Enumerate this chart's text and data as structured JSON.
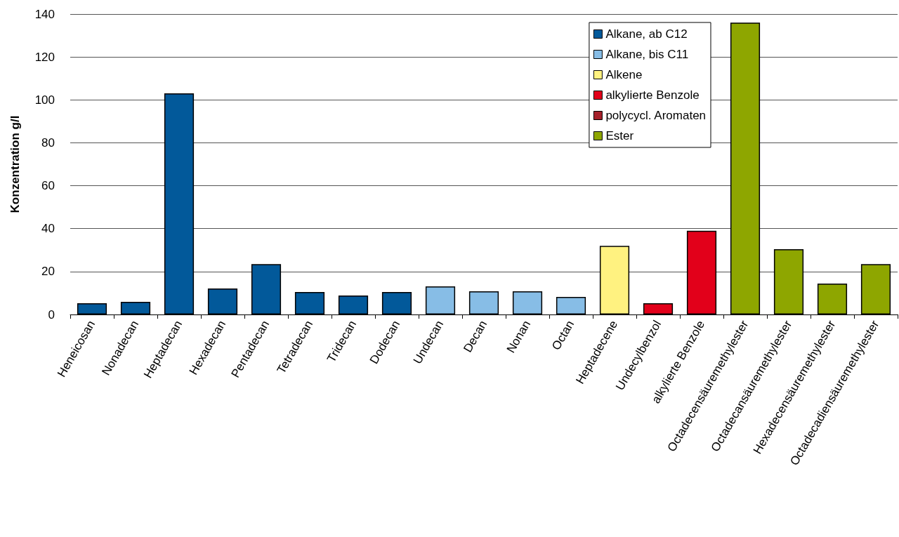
{
  "chart_data": {
    "type": "bar",
    "ylabel": "Konzentration g/l",
    "categories": [
      "Heneicosan",
      "Nonadecan",
      "Heptadecan",
      "Hexadecan",
      "Pentadecan",
      "Tetradecan",
      "Tridecan",
      "Dodecan",
      "Undecan",
      "Decan",
      "Nonan",
      "Octan",
      "Heptadecene",
      "Undecylbenzol",
      "alkylierte Benzole",
      "Octadecensäuremethylester",
      "Octadecansäuremethylester",
      "Hexadecensäuremethylester",
      "Octadecadiensäuremethylester"
    ],
    "series": [
      {
        "name": "Alkane, ab C12",
        "color": "#02599a",
        "values": [
          5.2,
          5.9,
          103,
          12.1,
          23.5,
          10.5,
          8.8,
          10.5,
          null,
          null,
          null,
          null,
          null,
          null,
          null,
          null,
          null,
          null,
          null
        ]
      },
      {
        "name": "Alkane, bis C11",
        "color": "#87bde6",
        "values": [
          null,
          null,
          null,
          null,
          null,
          null,
          null,
          null,
          13.1,
          10.8,
          10.8,
          8.2,
          null,
          null,
          null,
          null,
          null,
          null,
          null
        ]
      },
      {
        "name": "Alkene",
        "color": "#fff280",
        "values": [
          null,
          null,
          null,
          null,
          null,
          null,
          null,
          null,
          null,
          null,
          null,
          null,
          32,
          null,
          null,
          null,
          null,
          null,
          null
        ]
      },
      {
        "name": "alkylierte Benzole",
        "color": "#e2001a",
        "values": [
          null,
          null,
          null,
          null,
          null,
          null,
          null,
          null,
          null,
          null,
          null,
          null,
          null,
          5.2,
          39,
          null,
          null,
          null,
          null
        ]
      },
      {
        "name": "polycycl. Aromaten",
        "color": "#a5202a",
        "values": [
          null,
          null,
          null,
          null,
          null,
          null,
          null,
          null,
          null,
          null,
          null,
          null,
          null,
          null,
          null,
          null,
          null,
          null,
          null
        ]
      },
      {
        "name": "Ester",
        "color": "#8ea600",
        "values": [
          null,
          null,
          null,
          null,
          null,
          null,
          null,
          null,
          null,
          null,
          null,
          null,
          null,
          null,
          null,
          136,
          30.4,
          14.4,
          23.5
        ]
      }
    ],
    "ylim": [
      0,
      140
    ],
    "yticks": [
      0,
      20,
      40,
      60,
      80,
      100,
      120,
      140
    ],
    "grid": "y",
    "legend": "top right"
  }
}
